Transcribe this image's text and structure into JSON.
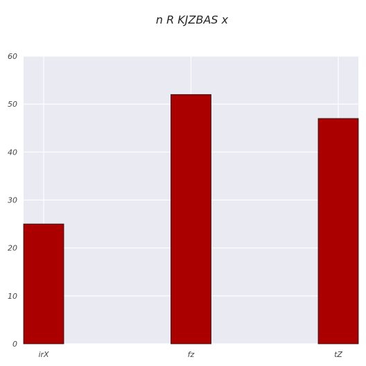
{
  "chart_data": {
    "type": "bar",
    "title": "n R KJZBAS  x",
    "xlabel": "",
    "ylabel": "",
    "categories": [
      "irX",
      "fz",
      "tZ"
    ],
    "values": [
      25,
      52,
      47
    ],
    "ylim": [
      0,
      60
    ],
    "yticks": [
      0,
      10,
      20,
      30,
      40,
      50,
      60
    ],
    "grid": true,
    "bar_color": "#aa0000",
    "background_color": "#e9eaf2"
  }
}
